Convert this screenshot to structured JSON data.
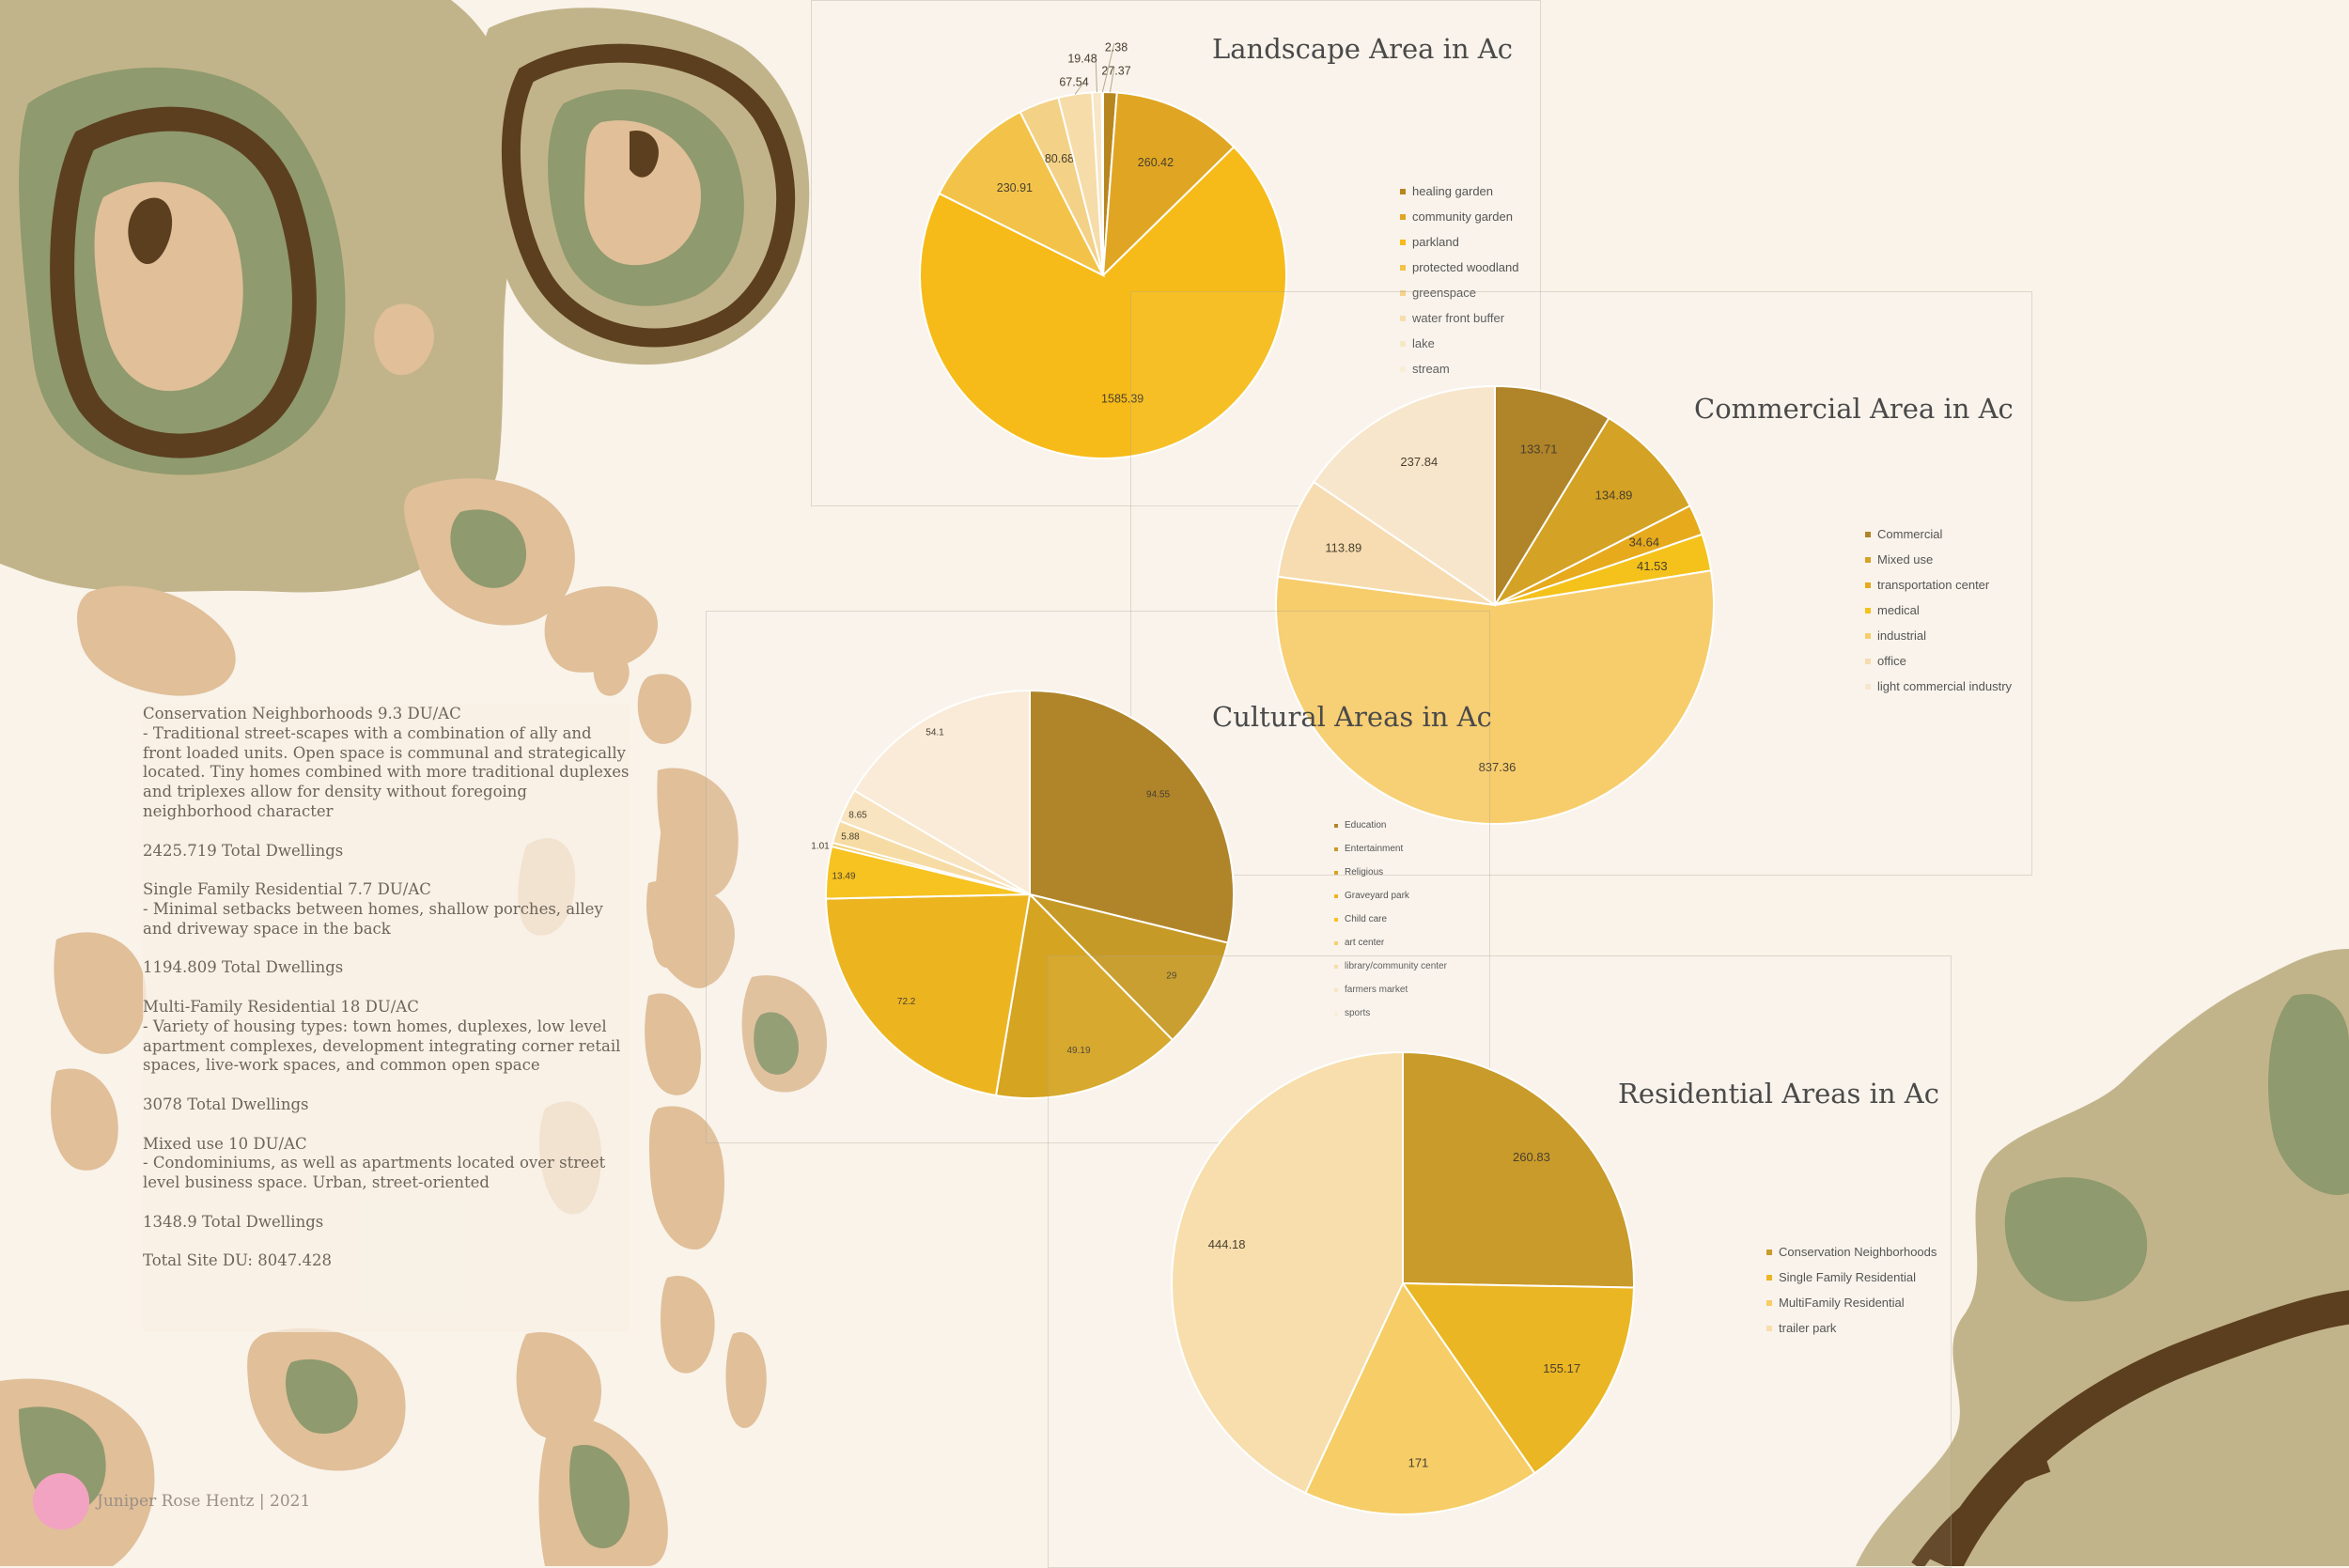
{
  "colors": {
    "background": "#f9f3ea",
    "map_olive": "#c2b48a",
    "map_dark": "#5c3f1f",
    "map_green": "#8f9a6e",
    "map_tan": "#e0bf99",
    "accent_pink": "#f3a3c2"
  },
  "text_panel": {
    "paragraphs": [
      "Conservation Neighborhoods 9.3 DU/AC\n- Traditional street-scapes with a combination of ally and front loaded units. Open space is communal and strategically located. Tiny homes combined with more traditional duplexes and triplexes allow for density without foregoing neighborhood character",
      "2425.719 Total Dwellings",
      "Single Family Residential 7.7 DU/AC\n- Minimal setbacks between homes, shallow porches, alley and driveway space in the back",
      "1194.809 Total Dwellings",
      "Multi-Family Residential 18 DU/AC\n- Variety of housing types: town homes, duplexes, low level apartment complexes, development integrating corner retail spaces, live-work spaces, and common open space",
      "",
      "3078 Total Dwellings",
      "Mixed use 10 DU/AC\n- Condominiums, as well as apartments located over street level business space. Urban, street-oriented",
      "1348.9 Total Dwellings",
      "Total Site DU: 8047.428"
    ]
  },
  "footer": {
    "author": "Juniper Rose Hentz | 2021"
  },
  "chart_data": [
    {
      "type": "pie",
      "title": "Landscape Area in Ac",
      "categories": [
        "healing garden",
        "community garden",
        "parkland",
        "protected woodland",
        "greenspace",
        "water front buffer",
        "lake",
        "stream"
      ],
      "values": [
        27.37,
        260.42,
        1585.39,
        230.91,
        80.68,
        67.54,
        19.48,
        2.38
      ],
      "colors": [
        "#b8861e",
        "#e0a623",
        "#f6bb18",
        "#f3c349",
        "#f3d187",
        "#f6dca8",
        "#f8e6c4",
        "#f9ecd6"
      ],
      "legend_position": "right",
      "grid": false
    },
    {
      "type": "pie",
      "title": "Commercial Area in Ac",
      "categories": [
        "Commercial",
        "Mixed use",
        "transportation center",
        "medical",
        "industrial",
        "office",
        "light commercial industry"
      ],
      "values": [
        133.71,
        134.89,
        34.64,
        41.53,
        837.36,
        113.89,
        237.84
      ],
      "colors": [
        "#b08428",
        "#d4a224",
        "#e6aa1c",
        "#f4c21a",
        "#f7cd6c",
        "#f6dcb0",
        "#f8e6cc"
      ],
      "legend_position": "right",
      "grid": false
    },
    {
      "type": "pie",
      "title": "Cultural Areas in Ac",
      "categories": [
        "Education",
        "Entertainment",
        "Religious",
        "Graveyard park",
        "Child care",
        "art center",
        "library/community center",
        "farmers market",
        "sports"
      ],
      "values": [
        94.55,
        29,
        49.19,
        72.2,
        13.49,
        1.01,
        5.88,
        8.65,
        54.1
      ],
      "colors": [
        "#b0852a",
        "#c69a26",
        "#d5a421",
        "#ecb520",
        "#f6c320",
        "#f3d070",
        "#f6dca4",
        "#f8e4c0",
        "#f9ebd8"
      ],
      "legend_position": "right",
      "grid": false
    },
    {
      "type": "pie",
      "title": "Residential Areas in Ac",
      "categories": [
        "Conservation Neighborhoods",
        "Single Family Residential",
        "MultiFamily Residential",
        "trailer park"
      ],
      "values": [
        260.83,
        155.17,
        171,
        444.18
      ],
      "colors": [
        "#c99b2a",
        "#ebb623",
        "#f6cd66",
        "#f7deac"
      ],
      "legend_position": "right",
      "grid": false
    }
  ]
}
